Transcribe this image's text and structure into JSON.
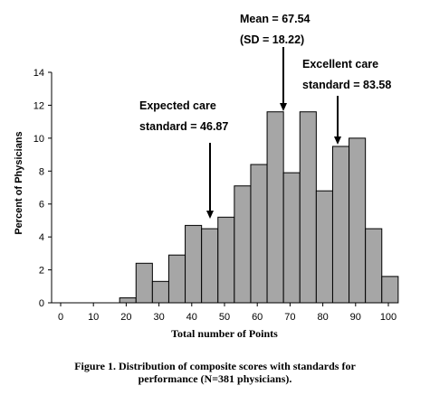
{
  "chart_data": {
    "type": "bar",
    "title": "",
    "xlabel": "Total number of Points",
    "ylabel": "Percent of Physicians",
    "xlim": [
      0,
      100
    ],
    "ylim": [
      0,
      14
    ],
    "x_ticks": [
      "0",
      "10",
      "20",
      "30",
      "40",
      "50",
      "60",
      "70",
      "80",
      "90",
      "100"
    ],
    "y_ticks": [
      "0",
      "2",
      "4",
      "6",
      "8",
      "10",
      "12",
      "14"
    ],
    "bin_width": 5,
    "bins": [
      {
        "start": 18,
        "end": 23,
        "value": 0.3
      },
      {
        "start": 23,
        "end": 28,
        "value": 2.4
      },
      {
        "start": 28,
        "end": 33,
        "value": 1.3
      },
      {
        "start": 33,
        "end": 38,
        "value": 2.9
      },
      {
        "start": 38,
        "end": 43,
        "value": 4.7
      },
      {
        "start": 43,
        "end": 48,
        "value": 4.5
      },
      {
        "start": 48,
        "end": 53,
        "value": 5.2
      },
      {
        "start": 53,
        "end": 58,
        "value": 7.1
      },
      {
        "start": 58,
        "end": 63,
        "value": 8.4
      },
      {
        "start": 63,
        "end": 68,
        "value": 11.6
      },
      {
        "start": 68,
        "end": 73,
        "value": 7.9
      },
      {
        "start": 73,
        "end": 78,
        "value": 11.6
      },
      {
        "start": 78,
        "end": 83,
        "value": 6.8
      },
      {
        "start": 83,
        "end": 88,
        "value": 9.5
      },
      {
        "start": 88,
        "end": 93,
        "value": 10.0
      },
      {
        "start": 93,
        "end": 98,
        "value": 4.5
      },
      {
        "start": 98,
        "end": 103,
        "value": 1.6
      }
    ],
    "grid": false,
    "bar_color": "#a6a6a6",
    "annotations": [
      {
        "lines": [
          "Expected care",
          "standard = 46.87"
        ],
        "x": 46.87
      },
      {
        "lines": [
          "Mean = 67.54",
          "(SD = 18.22)"
        ],
        "x": 67.54
      },
      {
        "lines": [
          "Excellent care",
          "standard = 83.58"
        ],
        "x": 83.58
      }
    ]
  },
  "caption": {
    "line1": "Figure 1. Distribution of composite scores with standards for",
    "line2": "performance (N=381 physicians)."
  }
}
